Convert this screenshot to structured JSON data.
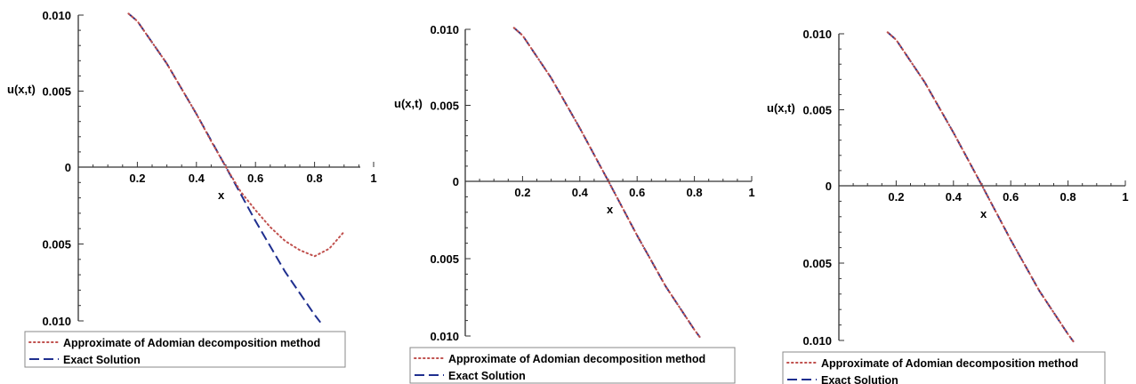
{
  "chart_data": [
    {
      "type": "line",
      "ylabel": "u(x,t)",
      "xlabel": "x",
      "xlim": [
        0,
        1
      ],
      "ylim": [
        -0.01,
        0.01
      ],
      "x_ticks": [
        0.2,
        0.4,
        0.6,
        0.8,
        1
      ],
      "x_tick_labels": [
        "0.2",
        "0.4",
        "0.6",
        "0.8",
        "1"
      ],
      "y_ticks": [
        0.01,
        0.005,
        0,
        -0.005,
        -0.01
      ],
      "y_tick_labels": [
        "0.010",
        "0.005",
        "0",
        "0.005",
        "0.010"
      ],
      "legend_position": "bottom",
      "legend": [
        "Approximate of Adomian decomposition method",
        "Exact Solution"
      ],
      "series": [
        {
          "name": "Approximate of Adomian decomposition method",
          "style": "dotted",
          "color": "#c0504d",
          "points": [
            [
              0.17,
              0.0101
            ],
            [
              0.2,
              0.0096
            ],
            [
              0.3,
              0.0068
            ],
            [
              0.4,
              0.0035
            ],
            [
              0.45,
              0.0017
            ],
            [
              0.5,
              0.0
            ],
            [
              0.55,
              -0.0016
            ],
            [
              0.6,
              -0.0028
            ],
            [
              0.65,
              -0.0039
            ],
            [
              0.7,
              -0.0048
            ],
            [
              0.75,
              -0.0054
            ],
            [
              0.8,
              -0.0058
            ],
            [
              0.85,
              -0.0053
            ],
            [
              0.9,
              -0.0042
            ]
          ]
        },
        {
          "name": "Exact Solution",
          "style": "dashed",
          "color": "#1f2f8f",
          "points": [
            [
              0.17,
              0.0101
            ],
            [
              0.2,
              0.0096
            ],
            [
              0.3,
              0.0068
            ],
            [
              0.4,
              0.0035
            ],
            [
              0.5,
              0.0
            ],
            [
              0.6,
              -0.0035
            ],
            [
              0.7,
              -0.0068
            ],
            [
              0.8,
              -0.0096
            ],
            [
              0.82,
              -0.0101
            ]
          ]
        }
      ]
    },
    {
      "type": "line",
      "ylabel": "u(x,t)",
      "xlabel": "x",
      "xlim": [
        0,
        1
      ],
      "ylim": [
        -0.01,
        0.01
      ],
      "x_ticks": [
        0.2,
        0.4,
        0.6,
        0.8,
        1
      ],
      "x_tick_labels": [
        "0.2",
        "0.4",
        "0.6",
        "0.8",
        "1"
      ],
      "y_ticks": [
        0.01,
        0.005,
        0,
        -0.005,
        -0.01
      ],
      "y_tick_labels": [
        "0.010",
        "0.005",
        "0",
        "0.005",
        "0.010"
      ],
      "legend_position": "bottom",
      "legend": [
        "Approximate of Adomian decomposition method",
        "Exact Solution"
      ],
      "series": [
        {
          "name": "Approximate of Adomian decomposition method",
          "style": "dotted",
          "color": "#c0504d",
          "points": [
            [
              0.17,
              0.0101
            ],
            [
              0.2,
              0.0096
            ],
            [
              0.3,
              0.0068
            ],
            [
              0.4,
              0.0035
            ],
            [
              0.5,
              0.0
            ],
            [
              0.6,
              -0.0035
            ],
            [
              0.7,
              -0.0068
            ],
            [
              0.8,
              -0.0096
            ],
            [
              0.82,
              -0.0101
            ]
          ]
        },
        {
          "name": "Exact Solution",
          "style": "dashed",
          "color": "#1f2f8f",
          "points": [
            [
              0.17,
              0.0101
            ],
            [
              0.2,
              0.0096
            ],
            [
              0.3,
              0.0068
            ],
            [
              0.4,
              0.0035
            ],
            [
              0.5,
              0.0
            ],
            [
              0.6,
              -0.0035
            ],
            [
              0.7,
              -0.0068
            ],
            [
              0.8,
              -0.0096
            ],
            [
              0.82,
              -0.0101
            ]
          ]
        }
      ]
    },
    {
      "type": "line",
      "ylabel": "u(x,t)",
      "xlabel": "x",
      "xlim": [
        0,
        1
      ],
      "ylim": [
        -0.01,
        0.01
      ],
      "x_ticks": [
        0.2,
        0.4,
        0.6,
        0.8,
        1
      ],
      "x_tick_labels": [
        "0.2",
        "0.4",
        "0.6",
        "0.8",
        "1"
      ],
      "y_ticks": [
        0.01,
        0.005,
        0,
        -0.005,
        -0.01
      ],
      "y_tick_labels": [
        "0.010",
        "0.005",
        "0",
        "0.005",
        "0.010"
      ],
      "legend_position": "bottom",
      "legend": [
        "Approximate of Adomian decomposition method",
        "Exact Solution"
      ],
      "series": [
        {
          "name": "Approximate of Adomian decomposition method",
          "style": "dotted",
          "color": "#c0504d",
          "points": [
            [
              0.17,
              0.0101
            ],
            [
              0.2,
              0.0096
            ],
            [
              0.3,
              0.0068
            ],
            [
              0.4,
              0.0035
            ],
            [
              0.5,
              0.0
            ],
            [
              0.6,
              -0.0035
            ],
            [
              0.7,
              -0.0068
            ],
            [
              0.8,
              -0.0096
            ],
            [
              0.82,
              -0.0101
            ]
          ]
        },
        {
          "name": "Exact Solution",
          "style": "dashed",
          "color": "#1f2f8f",
          "points": [
            [
              0.17,
              0.0101
            ],
            [
              0.2,
              0.0096
            ],
            [
              0.3,
              0.0068
            ],
            [
              0.4,
              0.0035
            ],
            [
              0.5,
              0.0
            ],
            [
              0.6,
              -0.0035
            ],
            [
              0.7,
              -0.0068
            ],
            [
              0.8,
              -0.0096
            ],
            [
              0.82,
              -0.0101
            ]
          ]
        }
      ]
    }
  ]
}
